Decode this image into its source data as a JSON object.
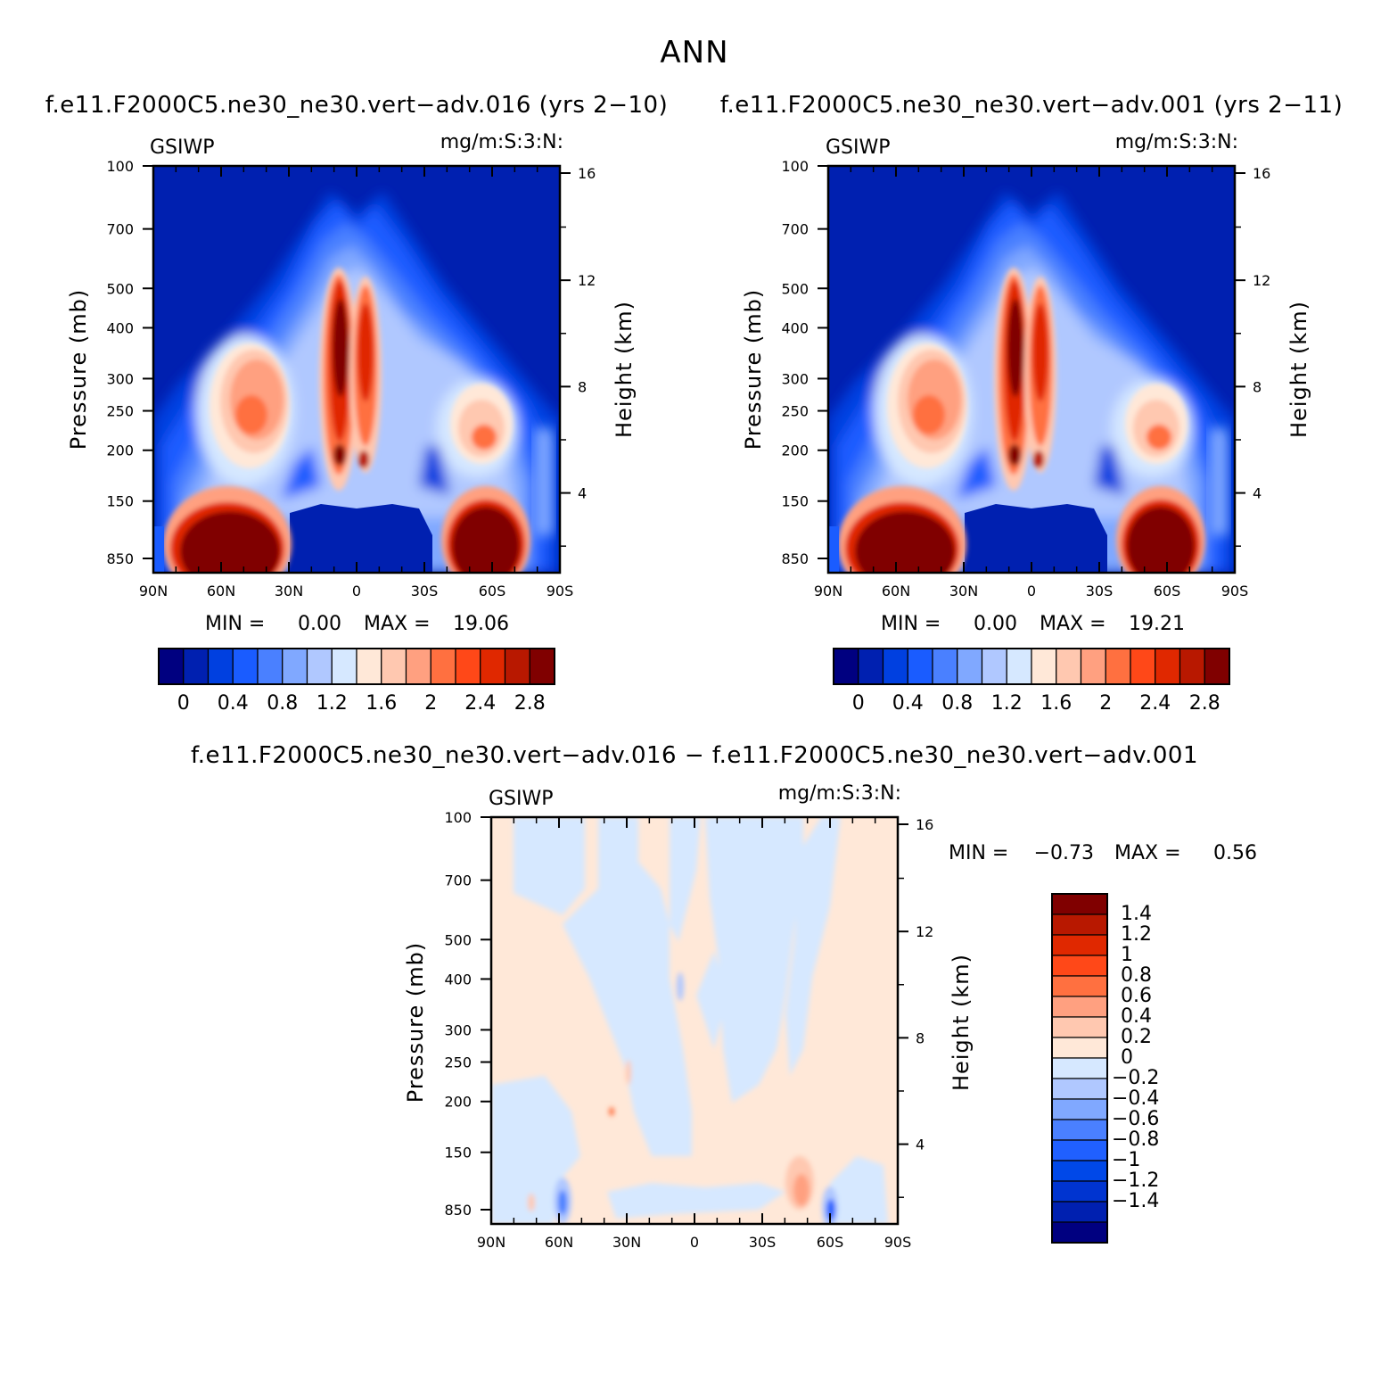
{
  "figure_title": "ANN",
  "colors": {
    "seq": [
      "#000080",
      "#0020b0",
      "#0040e0",
      "#1a5cff",
      "#4a80ff",
      "#80a8ff",
      "#b0c8ff",
      "#d6e8ff",
      "#ffe8d8",
      "#ffc8b0",
      "#ffa080",
      "#ff7040",
      "#ff4818",
      "#e02800",
      "#b81800",
      "#800000"
    ],
    "diff": [
      "#000080",
      "#0020b0",
      "#0034d0",
      "#0048e8",
      "#2060ff",
      "#4a80ff",
      "#80a8ff",
      "#b0c8ff",
      "#d6e8ff",
      "#ffe8d8",
      "#ffc8b0",
      "#ffa080",
      "#ff7040",
      "#ff4818",
      "#e02800",
      "#b81800",
      "#800000"
    ]
  },
  "chart_data": [
    {
      "type": "heatmap",
      "title": "f.e11.F2000C5.ne30_ne30.vert−adv.016 (yrs 2−10)",
      "left_label": "GSIWP",
      "right_label": "mg/m:S:3:N:",
      "ylabel": "Pressure (mb)",
      "ylabel_right": "Height (km)",
      "x_ticks": [
        "90N",
        "60N",
        "30N",
        "0",
        "30S",
        "60S",
        "90S"
      ],
      "y_ticks": [
        100,
        150,
        200,
        250,
        300,
        400,
        500,
        700,
        850
      ],
      "y_ticks_right": [
        16,
        12,
        8,
        4
      ],
      "min_label": "MIN =",
      "min": "0.00",
      "max_label": "MAX =",
      "max": "19.06",
      "colorbar_labels": [
        "0",
        "0.4",
        "0.8",
        "1.2",
        "1.6",
        "2",
        "2.4",
        "2.8"
      ]
    },
    {
      "type": "heatmap",
      "title": "f.e11.F2000C5.ne30_ne30.vert−adv.001 (yrs 2−11)",
      "left_label": "GSIWP",
      "right_label": "mg/m:S:3:N:",
      "ylabel": "Pressure (mb)",
      "ylabel_right": "Height (km)",
      "x_ticks": [
        "90N",
        "60N",
        "30N",
        "0",
        "30S",
        "60S",
        "90S"
      ],
      "y_ticks": [
        100,
        150,
        200,
        250,
        300,
        400,
        500,
        700,
        850
      ],
      "y_ticks_right": [
        16,
        12,
        8,
        4
      ],
      "min_label": "MIN =",
      "min": "0.00",
      "max_label": "MAX =",
      "max": "19.21",
      "colorbar_labels": [
        "0",
        "0.4",
        "0.8",
        "1.2",
        "1.6",
        "2",
        "2.4",
        "2.8"
      ]
    },
    {
      "type": "heatmap",
      "title": "f.e11.F2000C5.ne30_ne30.vert−adv.016 − f.e11.F2000C5.ne30_ne30.vert−adv.001",
      "left_label": "GSIWP",
      "right_label": "mg/m:S:3:N:",
      "ylabel": "Pressure (mb)",
      "ylabel_right": "Height (km)",
      "x_ticks": [
        "90N",
        "60N",
        "30N",
        "0",
        "30S",
        "60S",
        "90S"
      ],
      "y_ticks": [
        100,
        150,
        200,
        250,
        300,
        400,
        500,
        700,
        850
      ],
      "y_ticks_right": [
        16,
        12,
        8,
        4
      ],
      "min_label": "MIN =",
      "min": "−0.73",
      "max_label": "MAX =",
      "max": "0.56",
      "colorbar_labels": [
        "1.4",
        "1.2",
        "1",
        "0.8",
        "0.6",
        "0.4",
        "0.2",
        "0",
        "−0.2",
        "−0.4",
        "−0.6",
        "−0.8",
        "−1",
        "−1.2",
        "−1.4"
      ]
    }
  ]
}
